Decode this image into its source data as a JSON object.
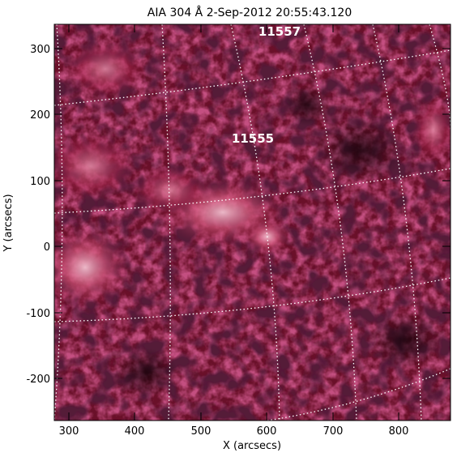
{
  "title": "AIA 304 Å   2-Sep-2012  20:55:43.120",
  "xlabel": "X (arcsecs)",
  "ylabel": "Y (arcsecs)",
  "x_ticks": [
    "300",
    "400",
    "500",
    "600",
    "700",
    "800"
  ],
  "y_ticks": [
    "300",
    "200",
    "100",
    "0",
    "-100",
    "-200"
  ],
  "active_regions": [
    "11557",
    "11555"
  ],
  "colors": {
    "background": "#ffffff",
    "image_dark": "#1e0410",
    "image_mid": "#8a1838",
    "image_bright": "#f2c0cf",
    "grid": "#ffffff"
  },
  "chart_data": {
    "type": "heatmap",
    "title": "AIA 304 Å   2-Sep-2012  20:55:43.120",
    "xlabel": "X (arcsecs)",
    "ylabel": "Y (arcsecs)",
    "xlim": [
      282,
      882
    ],
    "ylim": [
      -262,
      338
    ],
    "grid": "heliographic dotted, white",
    "annotations": [
      "11557",
      "11555"
    ]
  }
}
